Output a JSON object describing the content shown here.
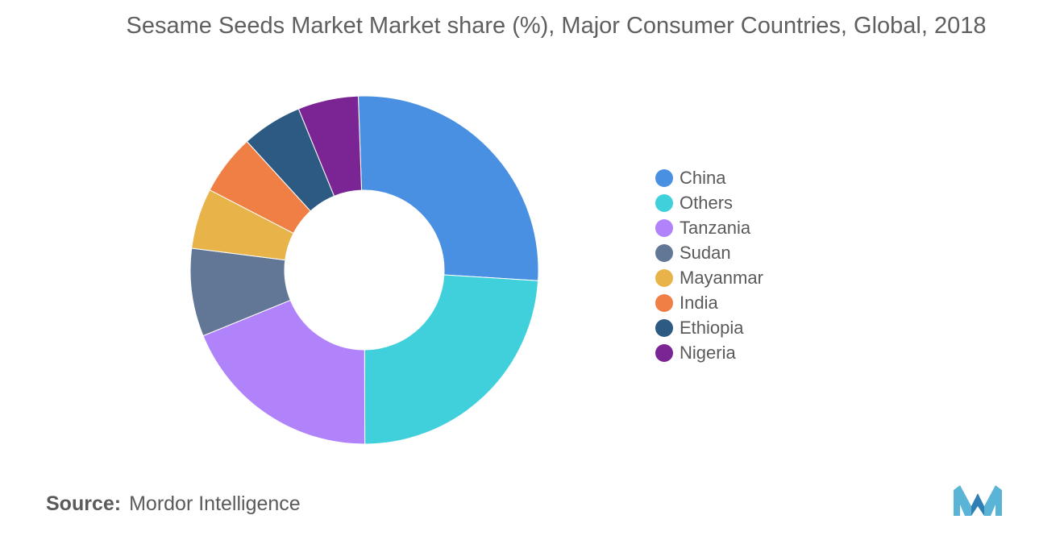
{
  "chart_data": {
    "type": "pie",
    "subtype": "donut",
    "title": "Sesame Seeds Market Market share (%), Major Consumer Countries, Global, 2018",
    "categories": [
      "China",
      "Others",
      "Tanzania",
      "Sudan",
      "Mayanmar",
      "India",
      "Ethiopia",
      "Nigeria"
    ],
    "values": [
      26.0,
      23.5,
      18.5,
      8.0,
      5.5,
      5.5,
      5.5,
      5.5
    ],
    "colors": [
      "#4a90e2",
      "#40d0dc",
      "#b083fb",
      "#627796",
      "#e8b44a",
      "#f07f45",
      "#2c5a82",
      "#7b2594"
    ],
    "legend_position": "right"
  },
  "source": {
    "label": "Source:",
    "text": "Mordor Intelligence"
  },
  "logo": {
    "icon": "mordor-intelligence-logo",
    "colors": [
      "#5ab4d6",
      "#2f7fb5"
    ]
  }
}
